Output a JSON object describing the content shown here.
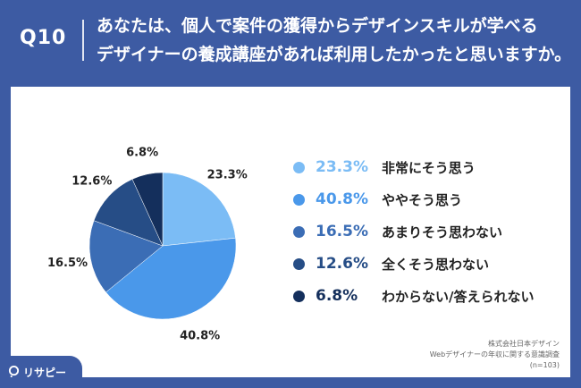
{
  "header": {
    "question_number": "Q10",
    "question_line1": "あなたは、個人で案件の獲得からデザインスキルが学べる",
    "question_line2": "デザイナーの養成講座があれば利用したかったと思いますか。"
  },
  "chart_data": {
    "type": "pie",
    "categories": [
      "非常にそう思う",
      "ややそう思う",
      "あまりそう思わない",
      "全くそう思わない",
      "わからない/答えられない"
    ],
    "values": [
      23.3,
      40.8,
      16.5,
      12.6,
      6.8
    ],
    "value_labels": [
      "23.3%",
      "40.8%",
      "16.5%",
      "12.6%",
      "6.8%"
    ],
    "colors": [
      "#7bbcf5",
      "#4a98ea",
      "#3b6db5",
      "#264d86",
      "#142f5c"
    ],
    "legend_placement": "right"
  },
  "legend_pct_colors": [
    "#7bbcf5",
    "#4a98ea",
    "#3b6db5",
    "#264d86",
    "#142f5c"
  ],
  "source": {
    "line1": "株式会社日本デザイン",
    "line2": "Webデザイナーの年収に関する意識調査",
    "line3": "(n=103)"
  },
  "logo": {
    "text": "リサピー",
    "icon": "risapy-logo-icon"
  }
}
